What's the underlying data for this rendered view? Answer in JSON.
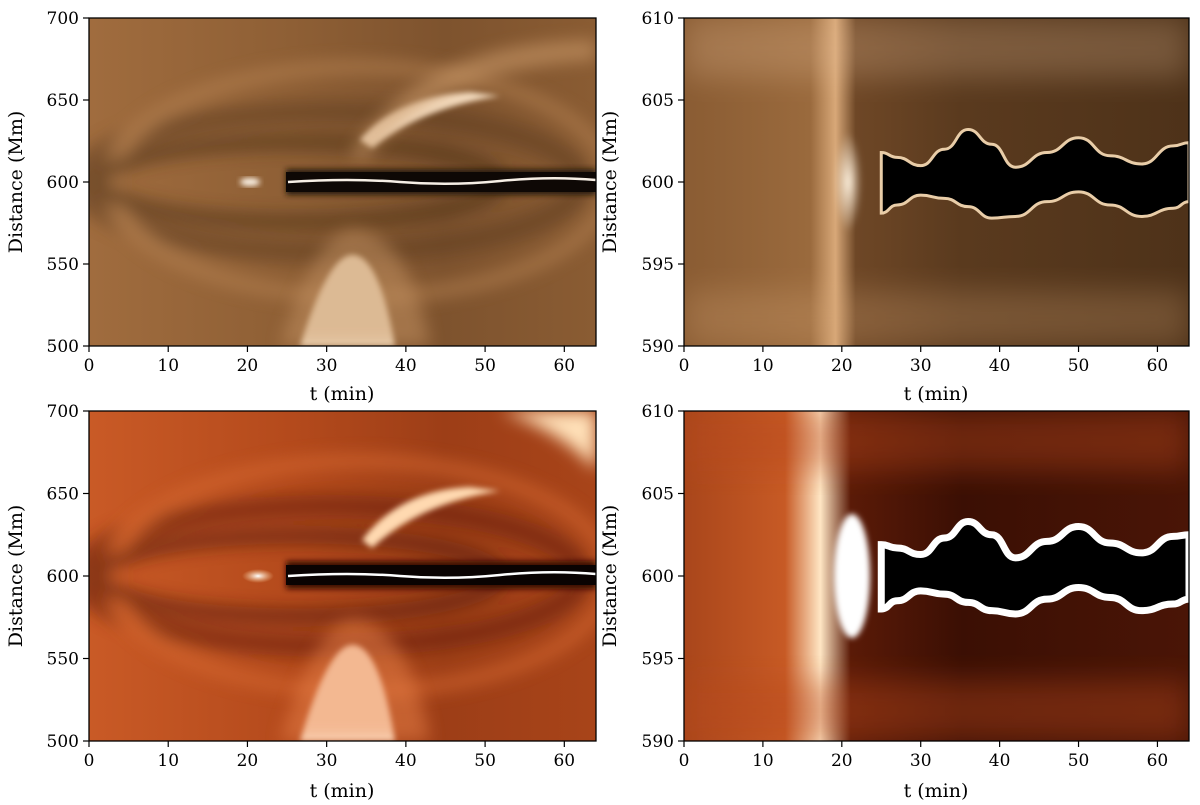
{
  "chart_data": [
    {
      "type": "heatmap",
      "panel": "top-left",
      "colormap": "copper",
      "xlabel": "t (min)",
      "ylabel": "Distance (Mm)",
      "xlim": [
        0,
        64
      ],
      "ylim": [
        500,
        700
      ],
      "xticks": [
        0,
        10,
        20,
        30,
        40,
        50,
        60
      ],
      "yticks": [
        500,
        550,
        600,
        650,
        700
      ],
      "features": {
        "dark_band_center": 600,
        "dark_band_start_t": 25,
        "bright_event_t": 20
      }
    },
    {
      "type": "heatmap",
      "panel": "top-right",
      "colormap": "copper",
      "xlabel": "t (min)",
      "ylabel": "Distance (Mm)",
      "xlim": [
        0,
        64
      ],
      "ylim": [
        590,
        610
      ],
      "xticks": [
        0,
        10,
        20,
        30,
        40,
        50,
        60
      ],
      "yticks": [
        590,
        595,
        600,
        605,
        610
      ],
      "features": {
        "dark_core_start_t": 25,
        "upper_edge": [
          [
            25,
            601.8
          ],
          [
            27,
            601.5
          ],
          [
            30,
            601.0
          ],
          [
            33,
            602.0
          ],
          [
            36,
            603.2
          ],
          [
            39,
            602.3
          ],
          [
            42,
            600.9
          ],
          [
            46,
            601.8
          ],
          [
            50,
            602.7
          ],
          [
            54,
            601.6
          ],
          [
            58,
            601.1
          ],
          [
            62,
            602.2
          ],
          [
            64,
            602.4
          ]
        ],
        "lower_edge": [
          [
            25,
            598.1
          ],
          [
            27,
            598.6
          ],
          [
            30,
            599.2
          ],
          [
            33,
            599.0
          ],
          [
            36,
            598.5
          ],
          [
            39,
            597.8
          ],
          [
            42,
            597.9
          ],
          [
            46,
            598.8
          ],
          [
            50,
            599.4
          ],
          [
            54,
            598.6
          ],
          [
            58,
            597.9
          ],
          [
            62,
            598.4
          ],
          [
            64,
            598.8
          ]
        ]
      }
    },
    {
      "type": "heatmap",
      "panel": "bottom-left",
      "colormap": "gist_heat",
      "xlabel": "t (min)",
      "ylabel": "Distance (Mm)",
      "xlim": [
        0,
        64
      ],
      "ylim": [
        500,
        700
      ],
      "xticks": [
        0,
        10,
        20,
        30,
        40,
        50,
        60
      ],
      "yticks": [
        500,
        550,
        600,
        650,
        700
      ],
      "features": {
        "dark_band_center": 600,
        "dark_band_start_t": 25,
        "bright_event_t": 20
      }
    },
    {
      "type": "heatmap",
      "panel": "bottom-right",
      "colormap": "gist_heat",
      "xlabel": "t (min)",
      "ylabel": "Distance (Mm)",
      "xlim": [
        0,
        64
      ],
      "ylim": [
        590,
        610
      ],
      "xticks": [
        0,
        10,
        20,
        30,
        40,
        50,
        60
      ],
      "yticks": [
        590,
        595,
        600,
        605,
        610
      ],
      "features": {
        "dark_core_start_t": 25,
        "upper_edge": [
          [
            25,
            601.9
          ],
          [
            27,
            601.7
          ],
          [
            30,
            601.3
          ],
          [
            33,
            602.3
          ],
          [
            36,
            603.3
          ],
          [
            39,
            602.5
          ],
          [
            42,
            601.1
          ],
          [
            46,
            602.1
          ],
          [
            50,
            603.0
          ],
          [
            54,
            602.0
          ],
          [
            58,
            601.4
          ],
          [
            62,
            602.4
          ],
          [
            64,
            602.5
          ]
        ],
        "lower_edge": [
          [
            25,
            598.0
          ],
          [
            27,
            598.5
          ],
          [
            30,
            599.1
          ],
          [
            33,
            598.9
          ],
          [
            36,
            598.4
          ],
          [
            39,
            597.9
          ],
          [
            42,
            597.7
          ],
          [
            46,
            598.6
          ],
          [
            50,
            599.3
          ],
          [
            54,
            598.7
          ],
          [
            58,
            597.9
          ],
          [
            62,
            598.3
          ],
          [
            64,
            598.6
          ]
        ]
      }
    }
  ]
}
